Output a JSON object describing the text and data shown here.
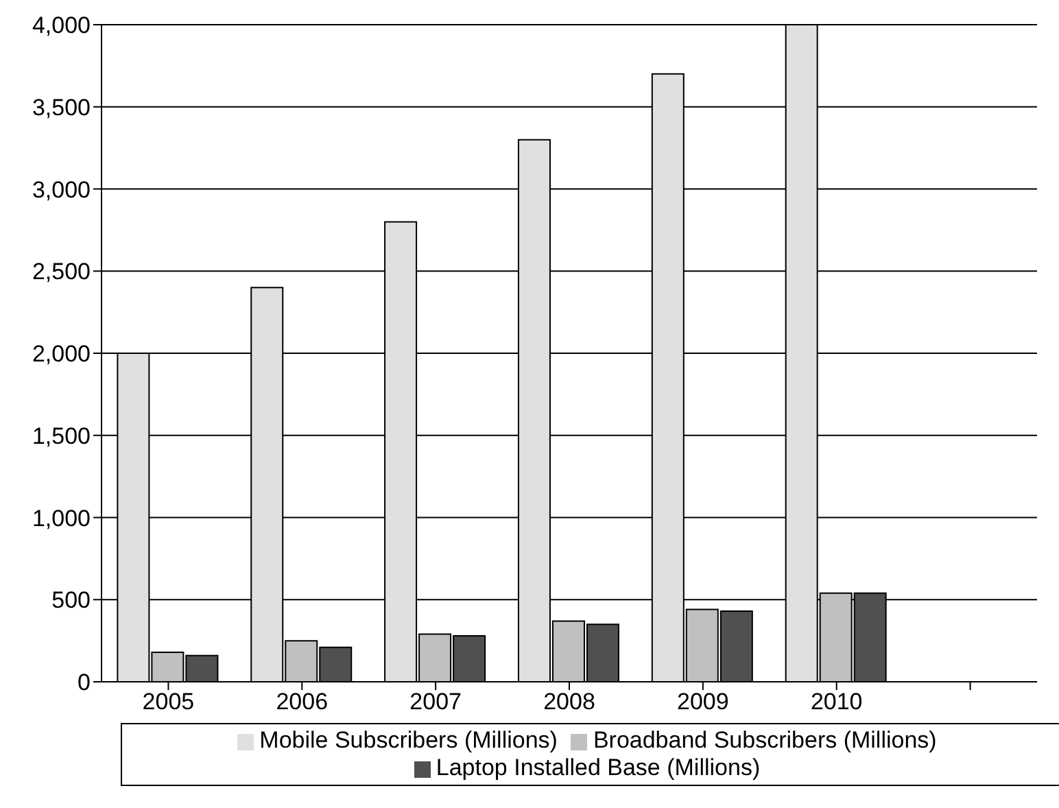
{
  "chart_data": {
    "type": "bar",
    "categories": [
      "2005",
      "2006",
      "2007",
      "2008",
      "2009",
      "2010",
      null
    ],
    "series": [
      {
        "name": "Mobile Subscribers (Millions)",
        "color": "#e0e0e0",
        "values": [
          2000,
          2400,
          2800,
          3300,
          3700,
          4000,
          null
        ]
      },
      {
        "name": "Broadband Subscribers (Millions)",
        "color": "#c0c0c0",
        "values": [
          180,
          250,
          290,
          370,
          440,
          540,
          null
        ]
      },
      {
        "name": "Laptop Installed Base (Millions)",
        "color": "#505050",
        "values": [
          160,
          210,
          280,
          350,
          430,
          540,
          null
        ]
      }
    ],
    "ylim": [
      0,
      4000
    ],
    "yticks": [
      0,
      500,
      {
        "value": 1000,
        "label": "1,000"
      },
      {
        "value": 1500,
        "label": "1,500"
      },
      {
        "value": 2000,
        "label": "2,000"
      },
      {
        "value": 2500,
        "label": "2,500"
      },
      {
        "value": 3000,
        "label": "3,000"
      },
      {
        "value": 3500,
        "label": "3,500"
      },
      {
        "value": 4000,
        "label": "4,000"
      }
    ],
    "grid": "y",
    "legend": "bottom"
  }
}
